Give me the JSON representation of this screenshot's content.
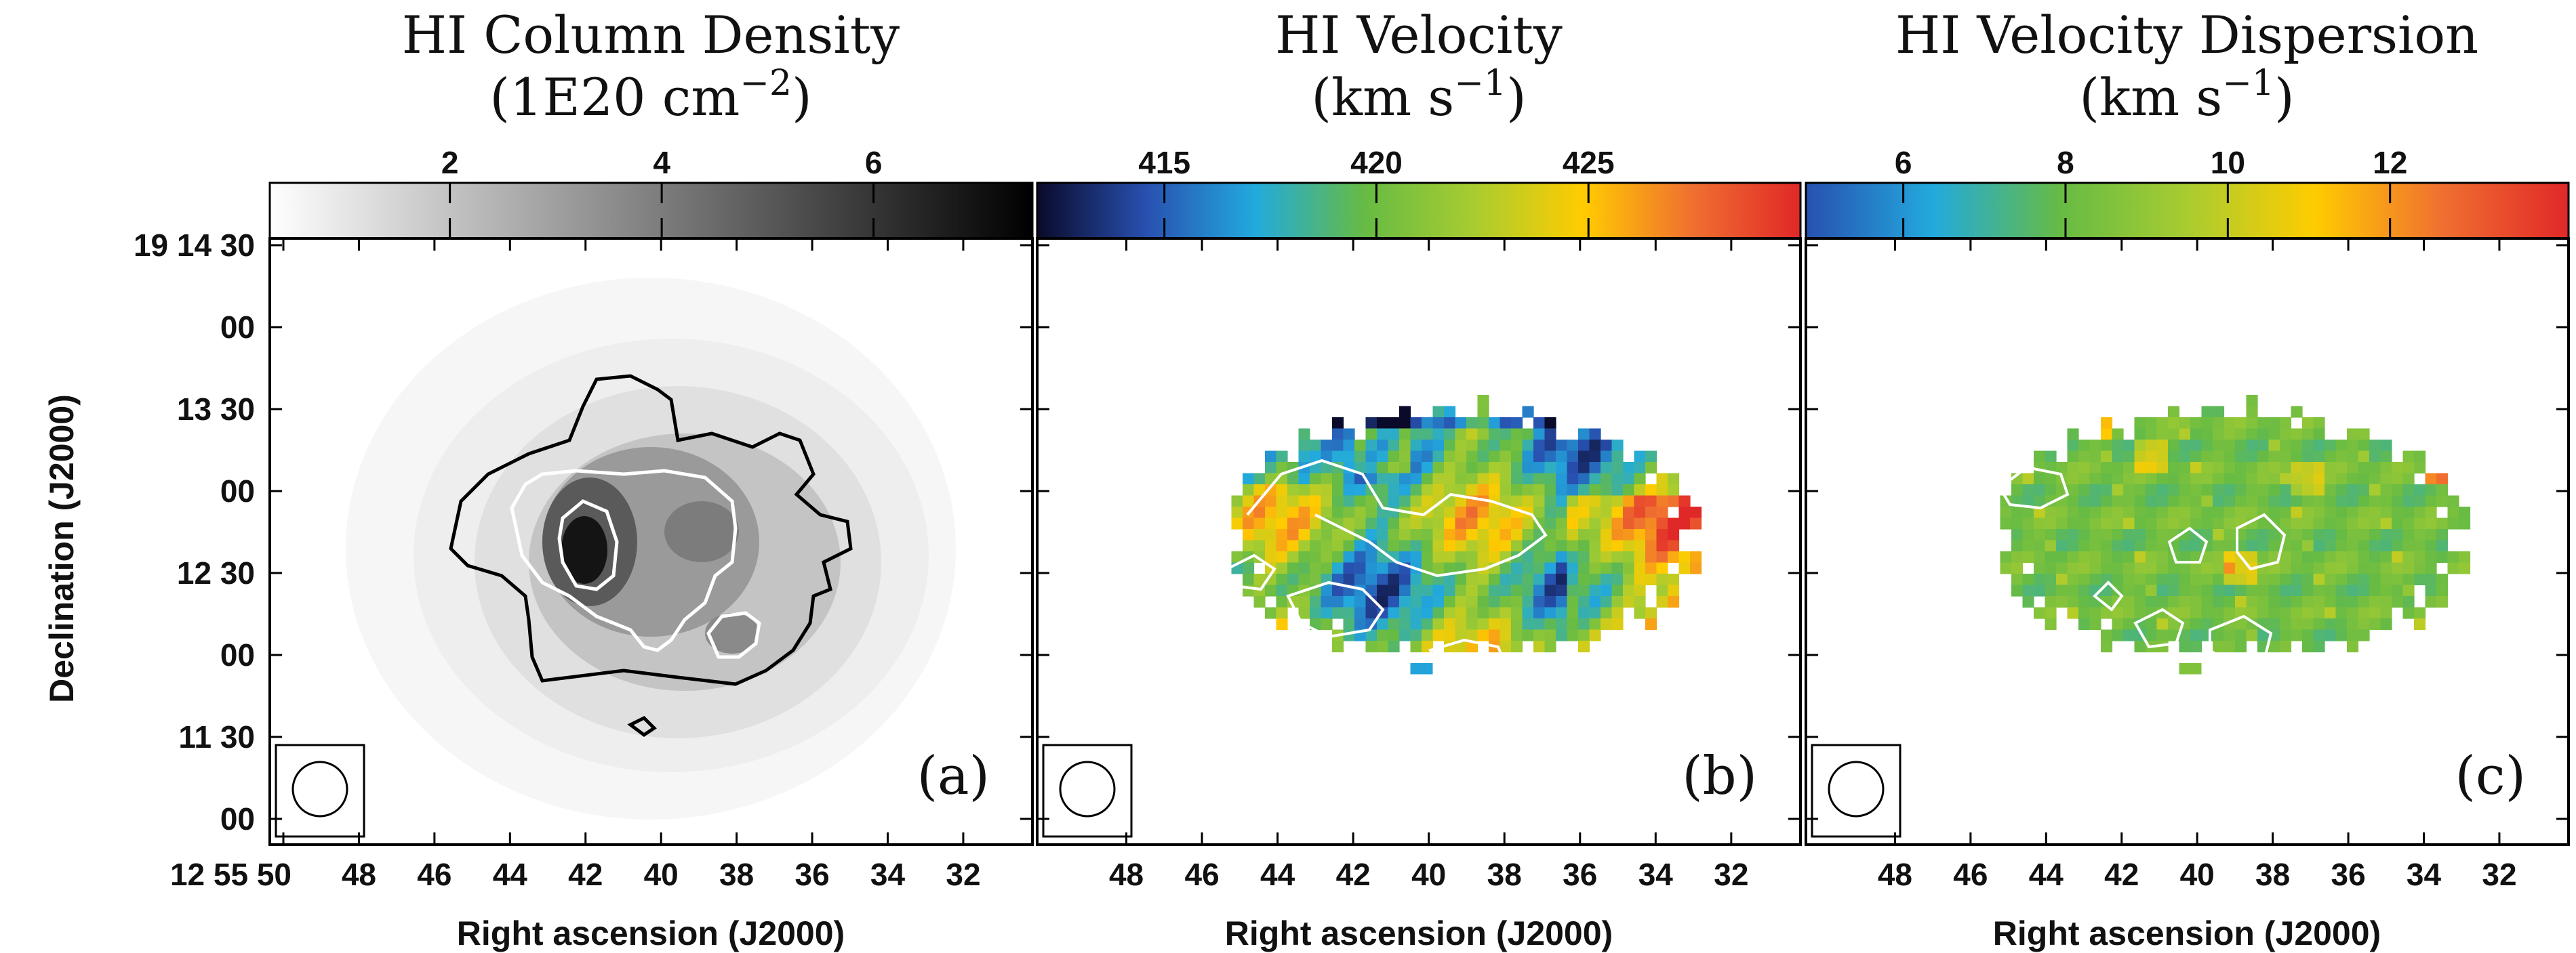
{
  "chart_data": [
    {
      "type": "heatmap",
      "panel_label": "(a)",
      "title_line1": "HI Column Density",
      "title_line2": "(1E20 cm",
      "title_exp": "−2",
      "title_close": ")",
      "colorbar": {
        "min": 0.3,
        "max": 7.5,
        "ticks": [
          2,
          4,
          6
        ],
        "colormap": "grayscale",
        "colors": [
          "#ffffff",
          "#000000"
        ]
      },
      "xlabel": "Right ascension (J2000)",
      "ylabel": "Declination (J2000)",
      "x_ticks": [
        "12 55 50",
        "48",
        "46",
        "44",
        "42",
        "40",
        "38",
        "36",
        "34",
        "32"
      ],
      "y_ticks": [
        "19 14 30",
        "00",
        "13 30",
        "00",
        "12 30",
        "00",
        "11 30",
        "00"
      ],
      "contours": [
        "black",
        "white"
      ],
      "beam": "circle"
    },
    {
      "type": "heatmap",
      "panel_label": "(b)",
      "title_line1": "HI Velocity",
      "title_line2": "(km s",
      "title_exp": "−1",
      "title_close": ")",
      "colorbar": {
        "min": 412,
        "max": 430,
        "ticks": [
          415,
          420,
          425
        ],
        "colormap": "jet-like",
        "colors": [
          "#0a0a2a",
          "#2850b0",
          "#22aadd",
          "#66bb44",
          "#a8cc30",
          "#ffcc00",
          "#f07030",
          "#e02828"
        ]
      },
      "xlabel": "Right ascension (J2000)",
      "x_ticks": [
        "48",
        "46",
        "44",
        "42",
        "40",
        "38",
        "36",
        "34",
        "32"
      ],
      "contours": [
        "white"
      ],
      "beam": "circle"
    },
    {
      "type": "heatmap",
      "panel_label": "(c)",
      "title_line1": "HI Velocity Dispersion",
      "title_line2": "(km s",
      "title_exp": "−1",
      "title_close": ")",
      "colorbar": {
        "min": 4.8,
        "max": 14.2,
        "ticks": [
          6,
          8,
          10,
          12
        ],
        "colormap": "jet-like",
        "colors": [
          "#2850b0",
          "#22aadd",
          "#66bb44",
          "#a8cc30",
          "#ffcc00",
          "#f07030",
          "#e02828"
        ]
      },
      "xlabel": "Right ascension (J2000)",
      "x_ticks": [
        "48",
        "46",
        "44",
        "42",
        "40",
        "38",
        "36",
        "34",
        "32"
      ],
      "contours": [
        "white"
      ],
      "beam": "circle"
    }
  ]
}
